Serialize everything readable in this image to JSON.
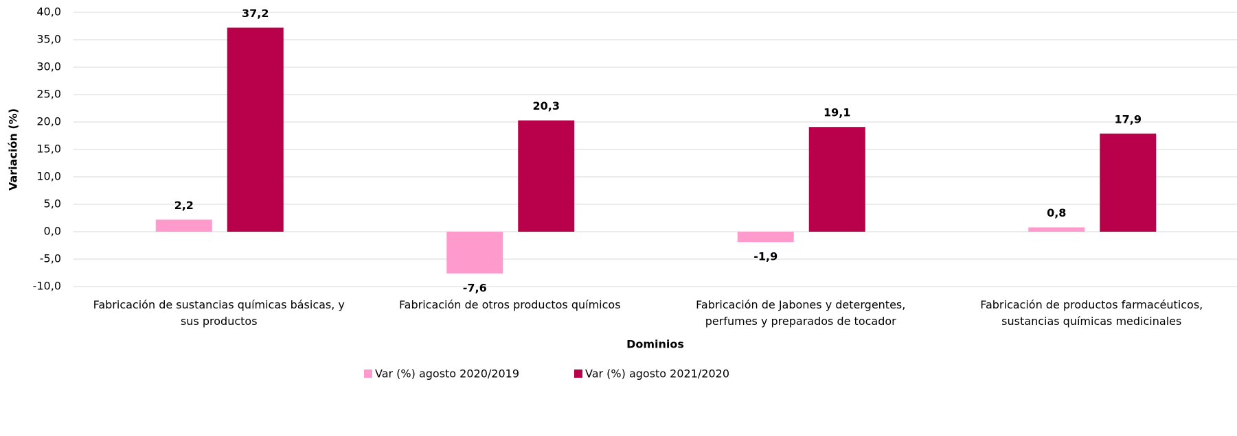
{
  "chart_data": {
    "type": "bar",
    "x_label": "Dominios",
    "y_label": "Variación (%)",
    "categories": [
      "Fabricación de sustancias químicas básicas, y sus productos",
      "Fabricación de otros productos químicos",
      "Fabricación de Jabones y detergentes, perfumes y preparados de tocador",
      "Fabricación de productos farmacéuticos, sustancias químicas medicinales"
    ],
    "series": [
      {
        "name": "Var (%) agosto 2020/2019",
        "color": "#ff9acd",
        "values": [
          2.2,
          -7.6,
          -1.9,
          0.8
        ],
        "value_labels": [
          "2,2",
          "-7,6",
          "-1,9",
          "0,8"
        ]
      },
      {
        "name": "Var (%) agosto 2021/2020",
        "color": "#b8004b",
        "values": [
          37.2,
          20.3,
          19.1,
          17.9
        ],
        "value_labels": [
          "37,2",
          "20,3",
          "19,1",
          "17,9"
        ]
      }
    ],
    "ylim": [
      -10,
      40
    ],
    "yticks": [
      {
        "value": -10,
        "label": "-10,0"
      },
      {
        "value": -5,
        "label": "-5,0"
      },
      {
        "value": 0,
        "label": "0,0"
      },
      {
        "value": 5,
        "label": "5,0"
      },
      {
        "value": 10,
        "label": "10,0"
      },
      {
        "value": 15,
        "label": "15,0"
      },
      {
        "value": 20,
        "label": "20,0"
      },
      {
        "value": 25,
        "label": "25,0"
      },
      {
        "value": 30,
        "label": "30,0"
      },
      {
        "value": 35,
        "label": "35,0"
      },
      {
        "value": 40,
        "label": "40,0"
      }
    ],
    "grid": true,
    "legend": "bottom"
  }
}
